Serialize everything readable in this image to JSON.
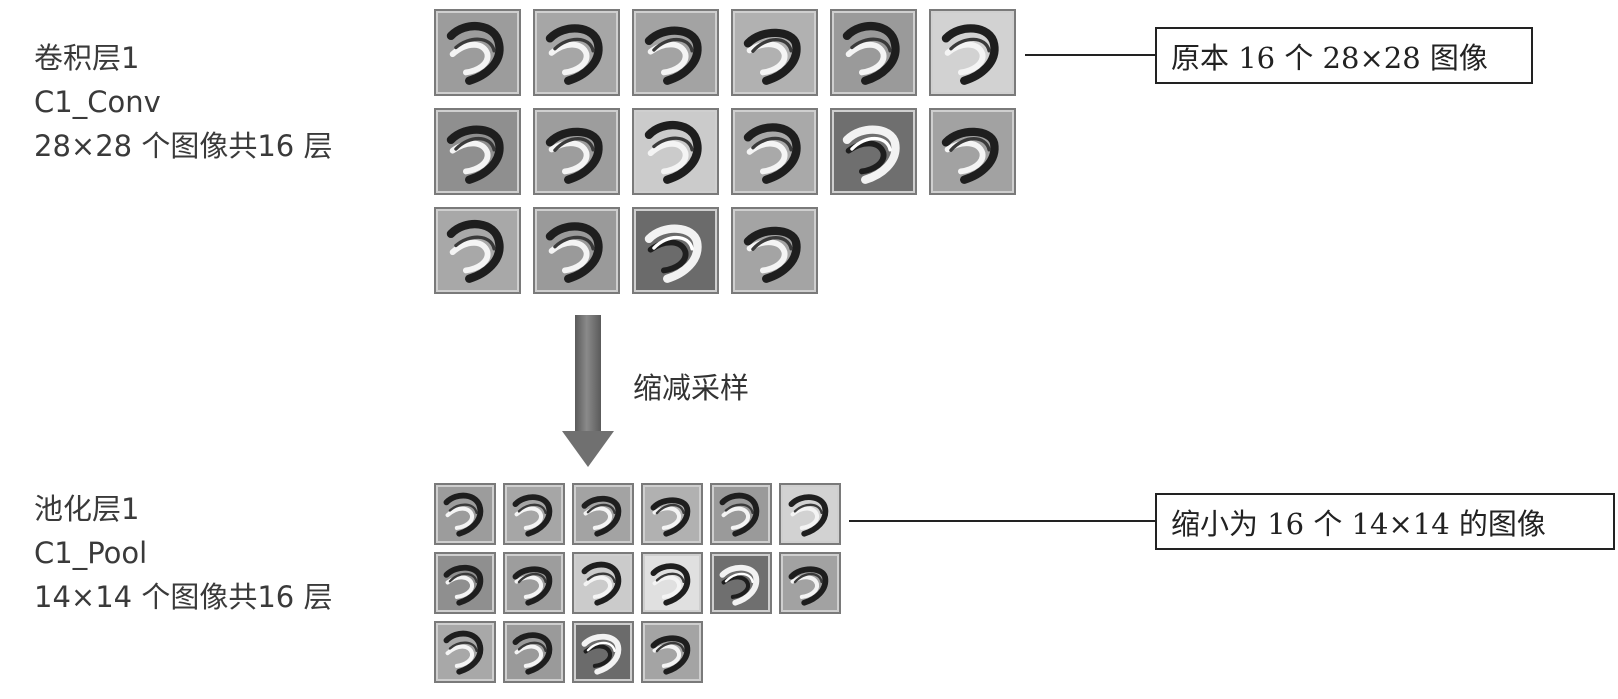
{
  "conv_layer": {
    "name": "卷积层1",
    "code": "C1_Conv",
    "description": "28×28 个图像共16 层",
    "callout": "原本 16 个 28×28  图像",
    "maps": [
      {
        "bg": "#9c9c9c"
      },
      {
        "bg": "#a6a6a6"
      },
      {
        "bg": "#a3a3a3"
      },
      {
        "bg": "#b1b1b1"
      },
      {
        "bg": "#9a9a9a"
      },
      {
        "bg": "#d2d2d2"
      },
      {
        "bg": "#8f8f8f"
      },
      {
        "bg": "#9d9d9d"
      },
      {
        "bg": "#cbcbcb"
      },
      {
        "bg": "#a9a9a9"
      },
      {
        "bg": "#6f6f6f"
      },
      {
        "bg": "#a2a2a2"
      },
      {
        "bg": "#a8a8a8"
      },
      {
        "bg": "#9a9a9a"
      },
      {
        "bg": "#6b6b6b"
      },
      {
        "bg": "#a4a4a4"
      }
    ]
  },
  "pool_layer": {
    "name": "池化层1",
    "code": "C1_Pool",
    "description": "14×14 个图像共16 层",
    "callout": "缩小为 16 个 14×14  的图像",
    "maps": [
      {
        "bg": "#9c9c9c"
      },
      {
        "bg": "#a6a6a6"
      },
      {
        "bg": "#a3a3a3"
      },
      {
        "bg": "#b1b1b1"
      },
      {
        "bg": "#9a9a9a"
      },
      {
        "bg": "#d2d2d2"
      },
      {
        "bg": "#8f8f8f"
      },
      {
        "bg": "#9d9d9d"
      },
      {
        "bg": "#cbcbcb"
      },
      {
        "bg": "#e0e0e0"
      },
      {
        "bg": "#6f6f6f"
      },
      {
        "bg": "#a2a2a2"
      },
      {
        "bg": "#a8a8a8"
      },
      {
        "bg": "#9a9a9a"
      },
      {
        "bg": "#6b6b6b"
      },
      {
        "bg": "#a4a4a4"
      }
    ]
  },
  "transition": {
    "label": "缩减采样"
  }
}
